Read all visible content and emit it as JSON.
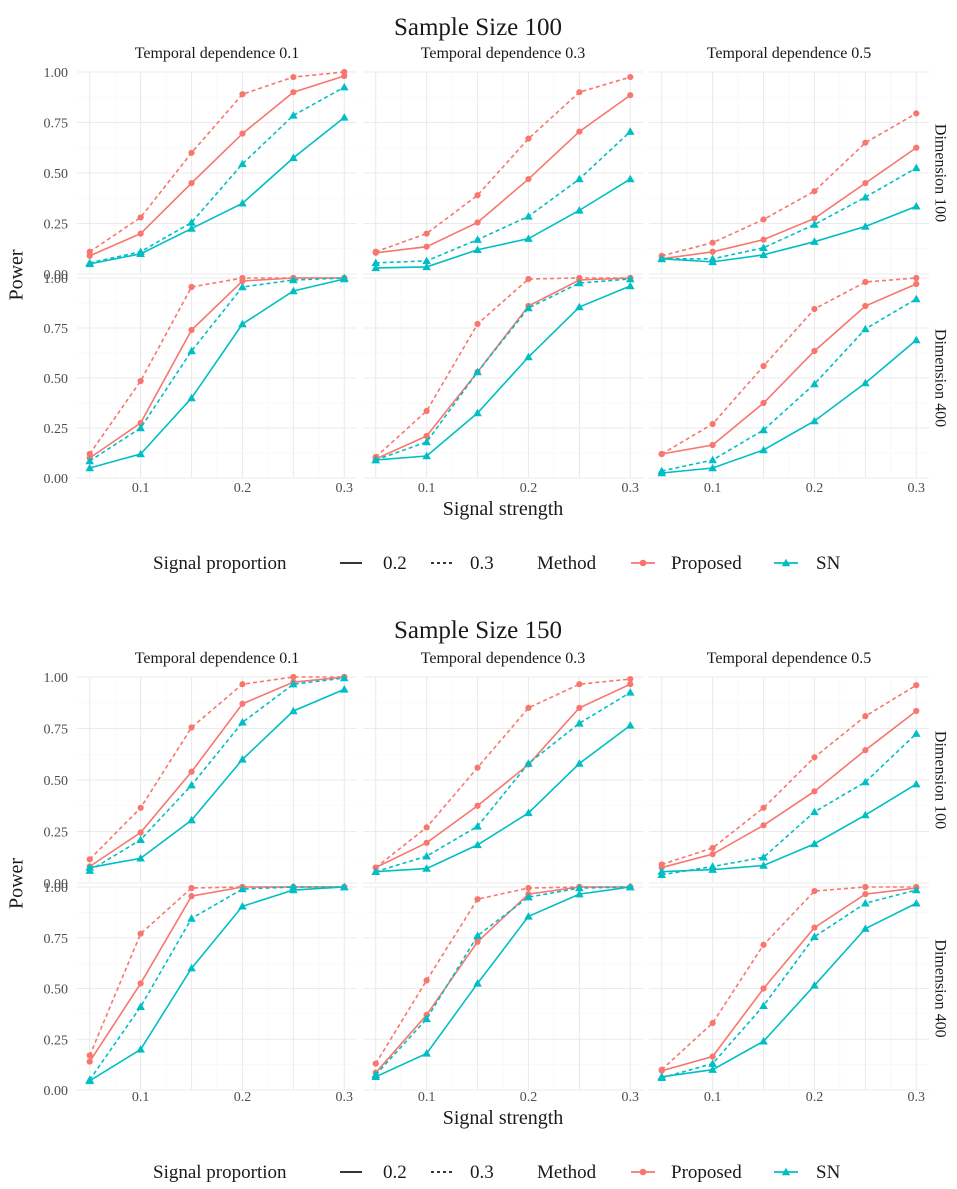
{
  "chart_data": [
    {
      "type": "line",
      "title": "Sample Size 100",
      "xlabel": "Signal strength",
      "ylabel": "Power",
      "x": [
        0.05,
        0.1,
        0.15,
        0.2,
        0.25,
        0.3
      ],
      "xticks": [
        "0.1",
        "0.2",
        "0.3"
      ],
      "yticks": [
        "0.00",
        "0.25",
        "0.50",
        "0.75",
        "1.00"
      ],
      "ylim": [
        0,
        1
      ],
      "columns": [
        "Temporal dependence 0.1",
        "Temporal dependence 0.3",
        "Temporal dependence 0.5"
      ],
      "rows": [
        "Dimension 100",
        "Dimension 400"
      ],
      "panels": [
        [
          {
            "series": [
              {
                "method": "Proposed",
                "proportion": "0.2",
                "values": [
                  0.09,
                  0.2,
                  0.45,
                  0.695,
                  0.9,
                  0.98
                ]
              },
              {
                "method": "Proposed",
                "proportion": "0.3",
                "values": [
                  0.11,
                  0.28,
                  0.6,
                  0.89,
                  0.975,
                  1.0
                ]
              },
              {
                "method": "SN",
                "proportion": "0.2",
                "values": [
                  0.05,
                  0.1,
                  0.225,
                  0.35,
                  0.575,
                  0.775
                ]
              },
              {
                "method": "SN",
                "proportion": "0.3",
                "values": [
                  0.055,
                  0.11,
                  0.255,
                  0.545,
                  0.785,
                  0.925
                ]
              }
            ]
          },
          {
            "series": [
              {
                "method": "Proposed",
                "proportion": "0.2",
                "values": [
                  0.105,
                  0.135,
                  0.255,
                  0.47,
                  0.705,
                  0.885
                ]
              },
              {
                "method": "Proposed",
                "proportion": "0.3",
                "values": [
                  0.11,
                  0.2,
                  0.39,
                  0.67,
                  0.9,
                  0.975
                ]
              },
              {
                "method": "SN",
                "proportion": "0.2",
                "values": [
                  0.03,
                  0.035,
                  0.12,
                  0.175,
                  0.315,
                  0.47
                ]
              },
              {
                "method": "SN",
                "proportion": "0.3",
                "values": [
                  0.055,
                  0.065,
                  0.17,
                  0.285,
                  0.47,
                  0.705
                ]
              }
            ]
          },
          {
            "series": [
              {
                "method": "Proposed",
                "proportion": "0.2",
                "values": [
                  0.075,
                  0.11,
                  0.17,
                  0.275,
                  0.45,
                  0.625
                ]
              },
              {
                "method": "Proposed",
                "proportion": "0.3",
                "values": [
                  0.09,
                  0.155,
                  0.27,
                  0.41,
                  0.65,
                  0.795
                ]
              },
              {
                "method": "SN",
                "proportion": "0.2",
                "values": [
                  0.075,
                  0.06,
                  0.095,
                  0.16,
                  0.235,
                  0.335
                ]
              },
              {
                "method": "SN",
                "proportion": "0.3",
                "values": [
                  0.075,
                  0.075,
                  0.13,
                  0.245,
                  0.38,
                  0.525
                ]
              }
            ]
          }
        ],
        [
          {
            "series": [
              {
                "method": "Proposed",
                "proportion": "0.2",
                "values": [
                  0.1,
                  0.275,
                  0.74,
                  0.985,
                  1.0,
                  1.0
                ]
              },
              {
                "method": "Proposed",
                "proportion": "0.3",
                "values": [
                  0.12,
                  0.485,
                  0.955,
                  1.0,
                  1.0,
                  1.0
                ]
              },
              {
                "method": "SN",
                "proportion": "0.2",
                "values": [
                  0.05,
                  0.12,
                  0.4,
                  0.77,
                  0.935,
                  0.995
                ]
              },
              {
                "method": "SN",
                "proportion": "0.3",
                "values": [
                  0.085,
                  0.25,
                  0.635,
                  0.955,
                  0.99,
                  1.0
                ]
              }
            ]
          },
          {
            "series": [
              {
                "method": "Proposed",
                "proportion": "0.2",
                "values": [
                  0.095,
                  0.21,
                  0.53,
                  0.86,
                  0.99,
                  1.0
                ]
              },
              {
                "method": "Proposed",
                "proportion": "0.3",
                "values": [
                  0.105,
                  0.335,
                  0.77,
                  0.995,
                  1.0,
                  1.0
                ]
              },
              {
                "method": "SN",
                "proportion": "0.2",
                "values": [
                  0.09,
                  0.11,
                  0.325,
                  0.605,
                  0.855,
                  0.96
                ]
              },
              {
                "method": "SN",
                "proportion": "0.3",
                "values": [
                  0.09,
                  0.18,
                  0.53,
                  0.85,
                  0.975,
                  0.995
                ]
              }
            ]
          },
          {
            "series": [
              {
                "method": "Proposed",
                "proportion": "0.2",
                "values": [
                  0.12,
                  0.165,
                  0.375,
                  0.635,
                  0.86,
                  0.97
                ]
              },
              {
                "method": "Proposed",
                "proportion": "0.3",
                "values": [
                  0.12,
                  0.27,
                  0.56,
                  0.845,
                  0.98,
                  1.0
                ]
              },
              {
                "method": "SN",
                "proportion": "0.2",
                "values": [
                  0.025,
                  0.05,
                  0.14,
                  0.285,
                  0.475,
                  0.69
                ]
              },
              {
                "method": "SN",
                "proportion": "0.3",
                "values": [
                  0.035,
                  0.09,
                  0.24,
                  0.47,
                  0.745,
                  0.895
                ]
              }
            ]
          }
        ]
      ]
    },
    {
      "type": "line",
      "title": "Sample Size 150",
      "xlabel": "Signal strength",
      "ylabel": "Power",
      "x": [
        0.05,
        0.1,
        0.15,
        0.2,
        0.25,
        0.3
      ],
      "xticks": [
        "0.1",
        "0.2",
        "0.3"
      ],
      "yticks": [
        "0.00",
        "0.25",
        "0.50",
        "0.75",
        "1.00"
      ],
      "ylim": [
        0,
        1
      ],
      "columns": [
        "Temporal dependence 0.1",
        "Temporal dependence 0.3",
        "Temporal dependence 0.5"
      ],
      "rows": [
        "Dimension 100",
        "Dimension 400"
      ],
      "panels": [
        [
          {
            "series": [
              {
                "method": "Proposed",
                "proportion": "0.2",
                "values": [
                  0.08,
                  0.245,
                  0.54,
                  0.87,
                  0.975,
                  1.0
                ]
              },
              {
                "method": "Proposed",
                "proportion": "0.3",
                "values": [
                  0.115,
                  0.365,
                  0.755,
                  0.965,
                  1.0,
                  1.0
                ]
              },
              {
                "method": "SN",
                "proportion": "0.2",
                "values": [
                  0.075,
                  0.12,
                  0.305,
                  0.6,
                  0.835,
                  0.94
                ]
              },
              {
                "method": "SN",
                "proportion": "0.3",
                "values": [
                  0.06,
                  0.21,
                  0.475,
                  0.78,
                  0.965,
                  0.995
                ]
              }
            ]
          },
          {
            "series": [
              {
                "method": "Proposed",
                "proportion": "0.2",
                "values": [
                  0.075,
                  0.195,
                  0.375,
                  0.575,
                  0.85,
                  0.965
                ]
              },
              {
                "method": "Proposed",
                "proportion": "0.3",
                "values": [
                  0.075,
                  0.27,
                  0.56,
                  0.85,
                  0.965,
                  0.99
                ]
              },
              {
                "method": "SN",
                "proportion": "0.2",
                "values": [
                  0.055,
                  0.07,
                  0.185,
                  0.34,
                  0.58,
                  0.765
                ]
              },
              {
                "method": "SN",
                "proportion": "0.3",
                "values": [
                  0.055,
                  0.13,
                  0.275,
                  0.58,
                  0.775,
                  0.925
                ]
              }
            ]
          },
          {
            "series": [
              {
                "method": "Proposed",
                "proportion": "0.2",
                "values": [
                  0.075,
                  0.14,
                  0.28,
                  0.445,
                  0.645,
                  0.835
                ]
              },
              {
                "method": "Proposed",
                "proportion": "0.3",
                "values": [
                  0.09,
                  0.17,
                  0.365,
                  0.61,
                  0.81,
                  0.96
                ]
              },
              {
                "method": "SN",
                "proportion": "0.2",
                "values": [
                  0.055,
                  0.065,
                  0.085,
                  0.19,
                  0.33,
                  0.48
                ]
              },
              {
                "method": "SN",
                "proportion": "0.3",
                "values": [
                  0.04,
                  0.08,
                  0.125,
                  0.345,
                  0.49,
                  0.725
                ]
              }
            ]
          }
        ],
        [
          {
            "series": [
              {
                "method": "Proposed",
                "proportion": "0.2",
                "values": [
                  0.14,
                  0.525,
                  0.955,
                  1.0,
                  1.0,
                  1.0
                ]
              },
              {
                "method": "Proposed",
                "proportion": "0.3",
                "values": [
                  0.17,
                  0.77,
                  0.995,
                  1.0,
                  1.0,
                  1.0
                ]
              },
              {
                "method": "SN",
                "proportion": "0.2",
                "values": [
                  0.045,
                  0.2,
                  0.6,
                  0.905,
                  0.985,
                  1.0
                ]
              },
              {
                "method": "SN",
                "proportion": "0.3",
                "values": [
                  0.05,
                  0.41,
                  0.845,
                  0.99,
                  1.0,
                  1.0
                ]
              }
            ]
          },
          {
            "series": [
              {
                "method": "Proposed",
                "proportion": "0.2",
                "values": [
                  0.085,
                  0.37,
                  0.73,
                  0.965,
                  1.0,
                  1.0
                ]
              },
              {
                "method": "Proposed",
                "proportion": "0.3",
                "values": [
                  0.13,
                  0.54,
                  0.94,
                  0.995,
                  1.0,
                  1.0
                ]
              },
              {
                "method": "SN",
                "proportion": "0.2",
                "values": [
                  0.065,
                  0.18,
                  0.525,
                  0.855,
                  0.965,
                  1.0
                ]
              },
              {
                "method": "SN",
                "proportion": "0.3",
                "values": [
                  0.075,
                  0.35,
                  0.76,
                  0.95,
                  0.995,
                  1.0
                ]
              }
            ]
          },
          {
            "series": [
              {
                "method": "Proposed",
                "proportion": "0.2",
                "values": [
                  0.095,
                  0.165,
                  0.5,
                  0.8,
                  0.965,
                  0.995
                ]
              },
              {
                "method": "Proposed",
                "proportion": "0.3",
                "values": [
                  0.1,
                  0.33,
                  0.715,
                  0.98,
                  1.0,
                  1.0
                ]
              },
              {
                "method": "SN",
                "proportion": "0.2",
                "values": [
                  0.065,
                  0.1,
                  0.24,
                  0.515,
                  0.795,
                  0.92
                ]
              },
              {
                "method": "SN",
                "proportion": "0.3",
                "values": [
                  0.06,
                  0.13,
                  0.415,
                  0.755,
                  0.92,
                  0.985
                ]
              }
            ]
          }
        ]
      ]
    }
  ],
  "legend": {
    "proportion_title": "Signal proportion",
    "proportion_items": [
      "0.2",
      "0.3"
    ],
    "method_title": "Method",
    "method_items": [
      "Proposed",
      "SN"
    ]
  },
  "colors": {
    "Proposed": "#F8766D",
    "SN": "#00BFC4",
    "grid_major": "#ebebeb",
    "grid_minor": "#f5f5f5"
  }
}
